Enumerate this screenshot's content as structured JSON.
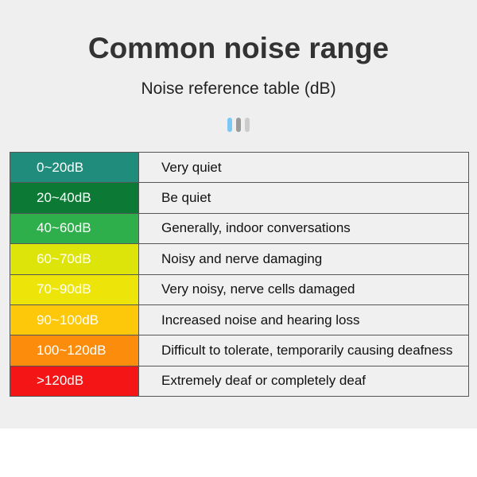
{
  "title": "Common noise range",
  "subtitle": "Noise reference table (dB)",
  "indicator_colors": [
    "#7cc8f4",
    "#9a9a9a",
    "#cccccc"
  ],
  "rows": [
    {
      "range": "0~20dB",
      "description": "Very quiet",
      "color": "#1f8c7c"
    },
    {
      "range": "20~40dB",
      "description": "Be quiet",
      "color": "#0c7a35"
    },
    {
      "range": "40~60dB",
      "description": "Generally, indoor conversations",
      "color": "#2eaf4c"
    },
    {
      "range": "60~70dB",
      "description": "Noisy and nerve damaging",
      "color": "#dde40a"
    },
    {
      "range": "70~90dB",
      "description": "Very noisy, nerve cells damaged",
      "color": "#ede50a"
    },
    {
      "range": "90~100dB",
      "description": "Increased noise and hearing loss",
      "color": "#fdc70a"
    },
    {
      "range": "100~120dB",
      "description": "Difficult to tolerate, temporarily causing deafness",
      "color": "#fc8d0c"
    },
    {
      "range": ">120dB",
      "description": "Extremely deaf or completely deaf",
      "color": "#f41616"
    }
  ]
}
